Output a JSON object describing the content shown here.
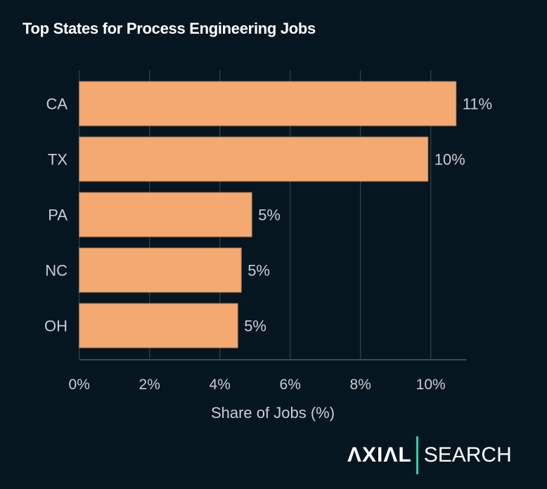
{
  "chart_data": {
    "type": "bar",
    "orientation": "horizontal",
    "title": "Top States for Process Engineering Jobs",
    "xlabel": "Share of Jobs (%)",
    "ylabel": "",
    "categories": [
      "CA",
      "TX",
      "PA",
      "NC",
      "OH"
    ],
    "values": [
      10.72,
      9.92,
      4.91,
      4.61,
      4.51
    ],
    "data_labels": [
      "11%",
      "10%",
      "5%",
      "5%",
      "5%"
    ],
    "xlim": [
      0,
      11
    ],
    "xticks": [
      0,
      2,
      4,
      6,
      8,
      10
    ],
    "xtick_labels": [
      "0%",
      "2%",
      "4%",
      "6%",
      "8%",
      "10%"
    ],
    "grid": true,
    "bar_color": "#F4A971",
    "background": "#061621"
  },
  "logo": {
    "brand": "AXIAL",
    "sub": "SEARCH",
    "accent": "#2ED3A0"
  }
}
